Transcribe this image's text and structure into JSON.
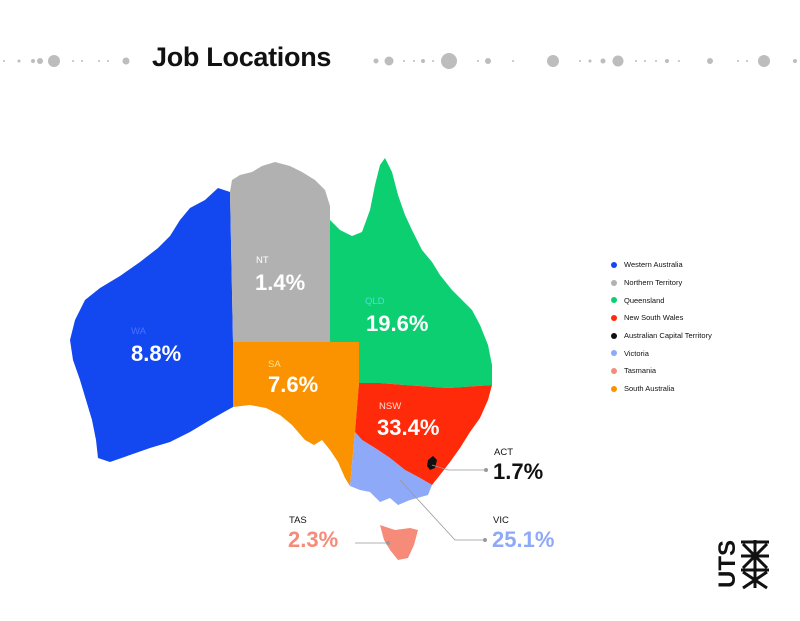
{
  "title": "Job Locations",
  "chart_data": {
    "type": "map",
    "title": "Job Locations",
    "regions": [
      {
        "abbr": "WA",
        "name": "Western Australia",
        "value": 8.8,
        "display": "8.8%",
        "color": "#1347f0"
      },
      {
        "abbr": "NT",
        "name": "Northern Territory",
        "value": 1.4,
        "display": "1.4%",
        "color": "#b1b1b1"
      },
      {
        "abbr": "QLD",
        "name": "Queensland",
        "value": 19.6,
        "display": "19.6%",
        "color": "#0ccf72"
      },
      {
        "abbr": "NSW",
        "name": "New South Wales",
        "value": 33.4,
        "display": "33.4%",
        "color": "#ff2a09"
      },
      {
        "abbr": "ACT",
        "name": "Australian Capital Territory",
        "value": 1.7,
        "display": "1.7%",
        "color": "#111111"
      },
      {
        "abbr": "VIC",
        "name": "Victoria",
        "value": 25.1,
        "display": "25.1%",
        "color": "#8ea9f7"
      },
      {
        "abbr": "TAS",
        "name": "Tasmania",
        "value": 2.3,
        "display": "2.3%",
        "color": "#f58b78"
      },
      {
        "abbr": "SA",
        "name": "South Australia",
        "value": 7.6,
        "display": "7.6%",
        "color": "#fb9300"
      }
    ],
    "legend": [
      "Western Australia",
      "Northern Territory",
      "Queensland",
      "New South Wales",
      "Australian Capital Territory",
      "Victoria",
      "Tasmania",
      "South Australia"
    ],
    "legend_placement": "right"
  },
  "logo": {
    "text": "UTS",
    "color": "#111111"
  },
  "decor": {
    "dot_color": "#bdbdbd"
  }
}
